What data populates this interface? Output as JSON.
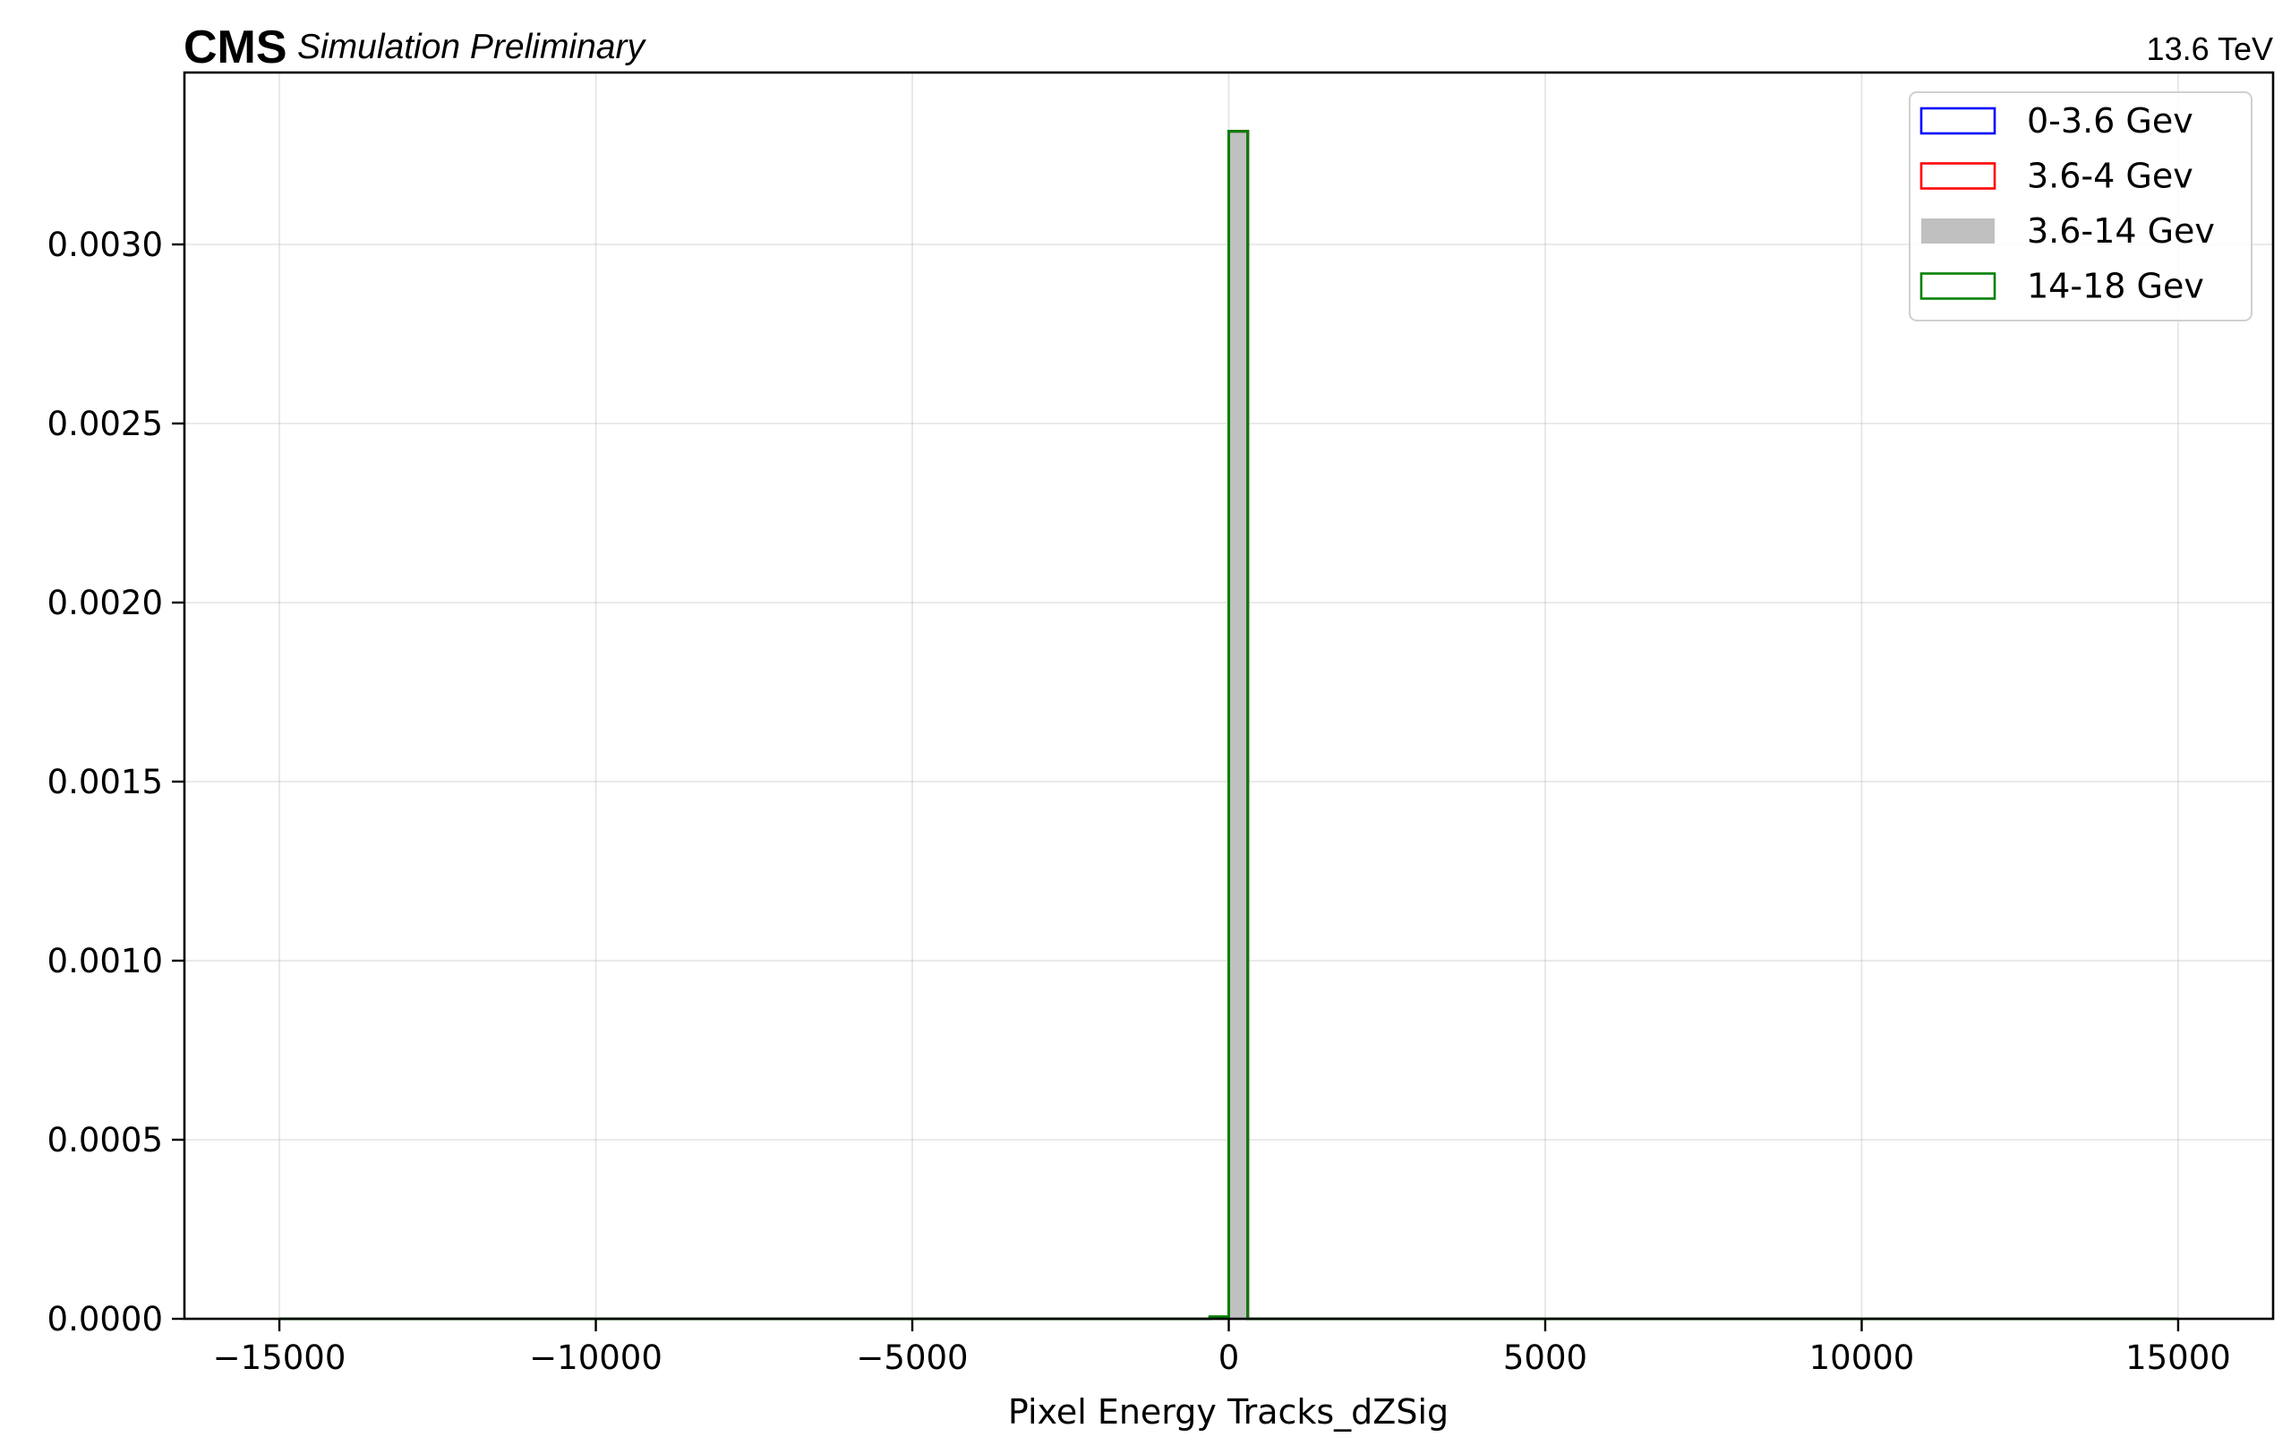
{
  "header": {
    "experiment": "CMS",
    "status": "Simulation Preliminary",
    "energy": "13.6 TeV"
  },
  "chart_data": {
    "type": "histogram",
    "xlabel": "Pixel Energy Tracks_dZSig",
    "ylabel": "",
    "xlim": [
      -16500,
      16500
    ],
    "ylim": [
      0,
      0.00348
    ],
    "xticks": [
      -15000,
      -10000,
      -5000,
      0,
      5000,
      10000,
      15000
    ],
    "xtick_labels": [
      "−15000",
      "−10000",
      "−5000",
      "0",
      "5000",
      "10000",
      "15000"
    ],
    "yticks": [
      0,
      0.0005,
      0.001,
      0.0015,
      0.002,
      0.0025,
      0.003
    ],
    "ytick_labels": [
      "0.0000",
      "0.0005",
      "0.0010",
      "0.0015",
      "0.0020",
      "0.0025",
      "0.0030"
    ],
    "grid": true,
    "legend_position": "top-right",
    "bin_range": [
      -15000,
      15000
    ],
    "bin_width": 300,
    "series": [
      {
        "name": "0-3.6 Gev",
        "style": "step",
        "color": "#0000ff",
        "bins": [
          {
            "x0": -300,
            "x1": 0,
            "y": 2e-06
          },
          {
            "x0": 0,
            "x1": 300,
            "y": 0.003316
          }
        ]
      },
      {
        "name": "3.6-4 Gev",
        "style": "step",
        "color": "#ff0000",
        "bins": [
          {
            "x0": -300,
            "x1": 0,
            "y": 2e-06
          },
          {
            "x0": 0,
            "x1": 300,
            "y": 0.003316
          }
        ]
      },
      {
        "name": "3.6-14 Gev",
        "style": "filled",
        "color": "#c0c0c0",
        "bins": [
          {
            "x0": -300,
            "x1": 0,
            "y": 4e-06
          },
          {
            "x0": 0,
            "x1": 300,
            "y": 0.003314
          }
        ]
      },
      {
        "name": "14-18 Gev",
        "style": "step",
        "color": "#008000",
        "bins": [
          {
            "x0": -300,
            "x1": 0,
            "y": 6e-06
          },
          {
            "x0": 0,
            "x1": 300,
            "y": 0.003316
          }
        ]
      }
    ]
  }
}
